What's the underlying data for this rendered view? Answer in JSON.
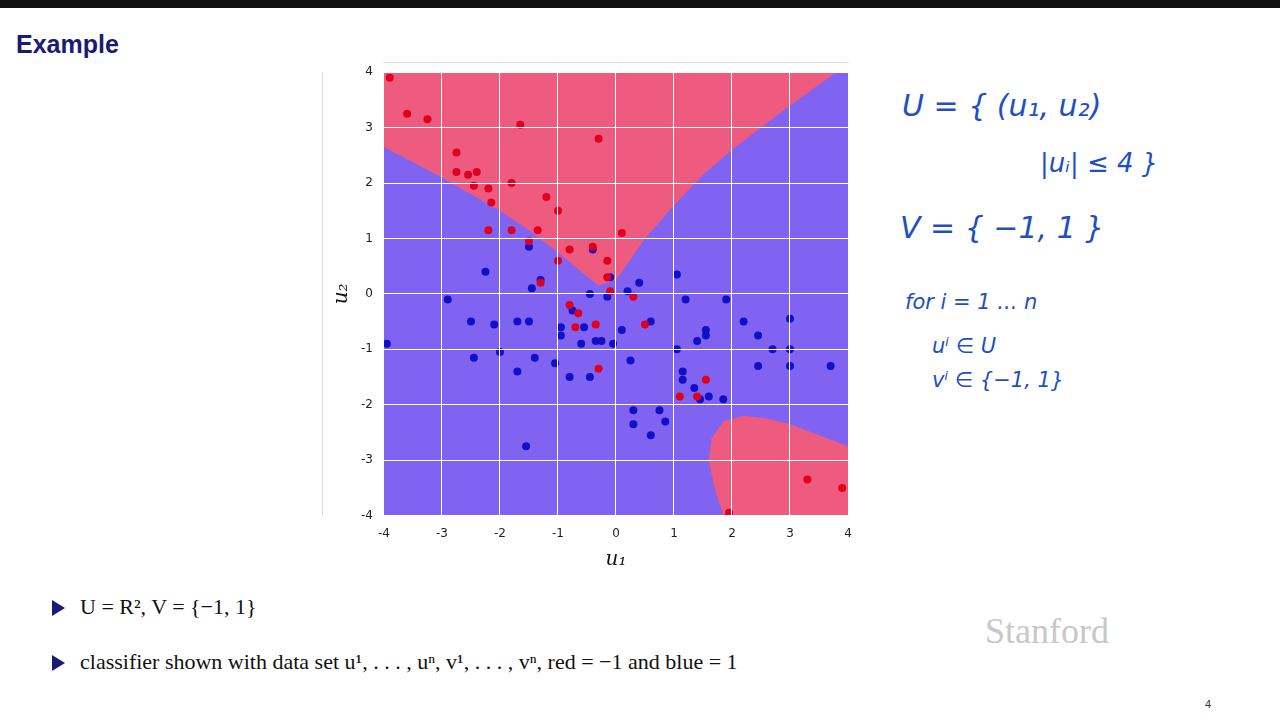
{
  "slide": {
    "title": "Example",
    "notes": [
      "U = { (u₁, u₂)",
      "|uᵢ| ≤ 4 }",
      "V = { −1, 1 }",
      "for i = 1 ... n",
      "uⁱ ∈ U",
      "vⁱ ∈ {−1, 1}"
    ],
    "bullets": [
      "U = R², V = {−1, 1}",
      "classifier shown with data set u¹, . . . , uⁿ, v¹, . . . , vⁿ, red = −1 and blue = 1"
    ],
    "watermark": "Stanford",
    "page_number": "4"
  },
  "chart_data": {
    "type": "scatter",
    "x_label": "u₁",
    "y_label": "u₂",
    "xlim": [
      -4,
      4
    ],
    "ylim": [
      -4,
      4
    ],
    "xticks": [
      -4,
      -3,
      -2,
      -1,
      0,
      1,
      2,
      3,
      4
    ],
    "yticks": [
      -4,
      -3,
      -2,
      -1,
      0,
      1,
      2,
      3,
      4
    ],
    "grid": true,
    "regions": [
      {
        "class": 1,
        "color": "#8163f2",
        "boundary": [
          [
            -4,
            -4
          ],
          [
            4,
            -4
          ],
          [
            4,
            4
          ],
          [
            -4,
            4
          ]
        ]
      },
      {
        "class": -1,
        "color": "#ef5b7f",
        "boundary": [
          [
            -4,
            2.65
          ],
          [
            -3,
            2.1
          ],
          [
            -2,
            1.5
          ],
          [
            -1.5,
            1.15
          ],
          [
            -1,
            0.75
          ],
          [
            -0.6,
            0.4
          ],
          [
            -0.3,
            0.15
          ],
          [
            0,
            0.25
          ],
          [
            0.2,
            0.55
          ],
          [
            0.5,
            1.0
          ],
          [
            1,
            1.6
          ],
          [
            1.5,
            2.15
          ],
          [
            2,
            2.6
          ],
          [
            2.5,
            3.0
          ],
          [
            3,
            3.4
          ],
          [
            3.8,
            4
          ],
          [
            -4,
            4
          ]
        ]
      },
      {
        "class": -1,
        "color": "#ef5b7f",
        "boundary": [
          [
            1.85,
            -4
          ],
          [
            1.7,
            -3.5
          ],
          [
            1.6,
            -3.0
          ],
          [
            1.65,
            -2.6
          ],
          [
            1.85,
            -2.3
          ],
          [
            2.2,
            -2.2
          ],
          [
            2.6,
            -2.25
          ],
          [
            3,
            -2.35
          ],
          [
            3.5,
            -2.55
          ],
          [
            4,
            -2.75
          ],
          [
            4,
            -4
          ]
        ]
      }
    ],
    "series": [
      {
        "class": -1,
        "color": "#e0001b",
        "marker": "circle",
        "points": [
          [
            -3.9,
            3.9
          ],
          [
            -3.6,
            3.25
          ],
          [
            -3.25,
            3.15
          ],
          [
            -2.75,
            2.55
          ],
          [
            -2.75,
            2.2
          ],
          [
            -2.55,
            2.15
          ],
          [
            -2.45,
            1.95
          ],
          [
            -2.4,
            2.2
          ],
          [
            -2.2,
            1.9
          ],
          [
            -2.15,
            1.65
          ],
          [
            -2.2,
            1.15
          ],
          [
            -1.8,
            2.0
          ],
          [
            -1.65,
            3.05
          ],
          [
            -1.8,
            1.15
          ],
          [
            -1.5,
            0.95
          ],
          [
            -1.35,
            1.15
          ],
          [
            -1.2,
            1.75
          ],
          [
            -1.3,
            0.2
          ],
          [
            -1.0,
            1.5
          ],
          [
            -1.0,
            0.6
          ],
          [
            -0.8,
            0.8
          ],
          [
            -0.3,
            2.8
          ],
          [
            -0.4,
            0.85
          ],
          [
            -0.15,
            0.6
          ],
          [
            0.1,
            1.1
          ],
          [
            -0.15,
            0.3
          ],
          [
            -0.1,
            0.05
          ],
          [
            0.3,
            -0.05
          ],
          [
            -0.8,
            -0.2
          ],
          [
            -0.7,
            -0.6
          ],
          [
            -0.65,
            -0.35
          ],
          [
            -0.35,
            -0.55
          ],
          [
            -0.3,
            -1.35
          ],
          [
            0.5,
            -0.55
          ],
          [
            1.1,
            -1.85
          ],
          [
            1.55,
            -1.55
          ],
          [
            1.4,
            -1.85
          ],
          [
            3.3,
            -3.35
          ],
          [
            3.9,
            -3.5
          ],
          [
            1.95,
            -3.95
          ]
        ]
      },
      {
        "class": 1,
        "color": "#1010c8",
        "marker": "circle",
        "points": [
          [
            -3.95,
            -0.9
          ],
          [
            -2.9,
            -0.1
          ],
          [
            -2.5,
            -0.5
          ],
          [
            -2.45,
            -1.15
          ],
          [
            -2.25,
            0.4
          ],
          [
            -2.1,
            -0.55
          ],
          [
            -2.0,
            -1.05
          ],
          [
            -1.7,
            -0.5
          ],
          [
            -1.7,
            -1.4
          ],
          [
            -1.5,
            -0.5
          ],
          [
            -1.55,
            -2.75
          ],
          [
            -1.45,
            0.1
          ],
          [
            -1.5,
            0.85
          ],
          [
            -1.3,
            0.25
          ],
          [
            -1.4,
            -1.15
          ],
          [
            -1.05,
            -1.25
          ],
          [
            -0.95,
            -0.6
          ],
          [
            -0.95,
            -0.75
          ],
          [
            -0.8,
            -1.5
          ],
          [
            -0.75,
            -0.3
          ],
          [
            -0.6,
            -0.9
          ],
          [
            -0.55,
            -0.6
          ],
          [
            -0.45,
            -1.5
          ],
          [
            -0.45,
            0.0
          ],
          [
            -0.4,
            0.8
          ],
          [
            -0.35,
            -0.85
          ],
          [
            -0.25,
            -0.85
          ],
          [
            -0.15,
            -0.05
          ],
          [
            -0.1,
            0.3
          ],
          [
            -0.05,
            -0.9
          ],
          [
            0.1,
            -0.65
          ],
          [
            0.2,
            0.05
          ],
          [
            0.25,
            -1.2
          ],
          [
            0.3,
            -2.1
          ],
          [
            0.3,
            -2.35
          ],
          [
            0.4,
            0.2
          ],
          [
            0.6,
            -0.5
          ],
          [
            0.6,
            -2.55
          ],
          [
            0.75,
            -2.1
          ],
          [
            0.85,
            -2.3
          ],
          [
            1.05,
            0.35
          ],
          [
            1.05,
            -1.0
          ],
          [
            1.15,
            -1.4
          ],
          [
            1.15,
            -1.55
          ],
          [
            1.2,
            -0.1
          ],
          [
            1.35,
            -1.7
          ],
          [
            1.4,
            -0.85
          ],
          [
            1.45,
            -1.9
          ],
          [
            1.55,
            -0.65
          ],
          [
            1.55,
            -0.75
          ],
          [
            1.9,
            -0.1
          ],
          [
            1.85,
            -1.9
          ],
          [
            2.2,
            -0.5
          ],
          [
            2.45,
            -0.75
          ],
          [
            2.45,
            -1.3
          ],
          [
            2.7,
            -1.0
          ],
          [
            3.0,
            -0.45
          ],
          [
            3.0,
            -1.0
          ],
          [
            3.0,
            -1.3
          ],
          [
            3.7,
            -1.3
          ],
          [
            1.6,
            -1.85
          ]
        ]
      }
    ]
  }
}
